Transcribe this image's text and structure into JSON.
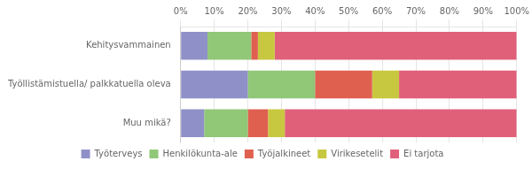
{
  "chart_data": {
    "type": "bar",
    "orientation": "horizontal",
    "stacked": true,
    "categories": [
      "Kehitysvammainen",
      "Työllistämistuella/ palkkatuella oleva",
      "Muu mikä?"
    ],
    "series": [
      {
        "name": "Työterveys",
        "values": [
          8,
          20,
          7
        ],
        "color": "#9090c8"
      },
      {
        "name": "Henkilökunta-ale",
        "values": [
          13,
          20,
          13
        ],
        "color": "#90c878"
      },
      {
        "name": "Työjalkineet",
        "values": [
          2,
          17,
          6
        ],
        "color": "#e06050"
      },
      {
        "name": "Virikesetelit",
        "values": [
          5,
          8,
          5
        ],
        "color": "#c8c840"
      },
      {
        "name": "Ei tarjota",
        "values": [
          72,
          35,
          69
        ],
        "color": "#e0607a"
      }
    ],
    "xlim": [
      0,
      100
    ],
    "xticks": [
      {
        "value": 0,
        "label": "0%"
      },
      {
        "value": 10,
        "label": "10%"
      },
      {
        "value": 20,
        "label": "20%"
      },
      {
        "value": 30,
        "label": "30%"
      },
      {
        "value": 40,
        "label": "40%"
      },
      {
        "value": 50,
        "label": "50%"
      },
      {
        "value": 60,
        "label": "60%"
      },
      {
        "value": 70,
        "label": "70%"
      },
      {
        "value": 80,
        "label": "80%"
      },
      {
        "value": 90,
        "label": "90%"
      },
      {
        "value": 100,
        "label": "100%"
      }
    ],
    "grid": true,
    "legend": "bottom"
  }
}
